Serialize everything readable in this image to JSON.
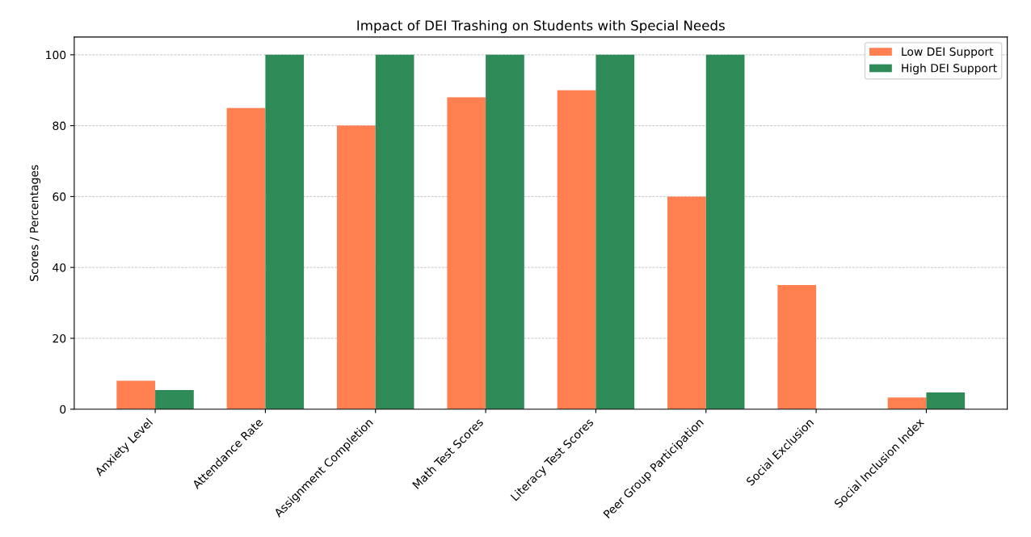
{
  "chart_data": {
    "type": "bar",
    "title": "Impact of DEI Trashing on Students with Special Needs",
    "ylabel": "Scores / Percentages",
    "categories": [
      "Anxiety Level",
      "Attendance Rate",
      "Assignment Completion",
      "Math Test Scores",
      "Literacy Test Scores",
      "Peer Group Participation",
      "Social Exclusion",
      "Social Inclusion Index"
    ],
    "series": [
      {
        "name": "Low DEI Support",
        "color": "#ff7f50",
        "values": [
          8,
          85,
          80,
          88,
          90,
          60,
          35,
          3.3
        ]
      },
      {
        "name": "High DEI Support",
        "color": "#2e8b57",
        "values": [
          5.4,
          100,
          100,
          100,
          100,
          100,
          0,
          4.7
        ]
      }
    ],
    "ylim": [
      0,
      105
    ],
    "yticks": [
      0,
      20,
      40,
      60,
      80,
      100
    ],
    "grid": "y",
    "legend": "top right"
  }
}
